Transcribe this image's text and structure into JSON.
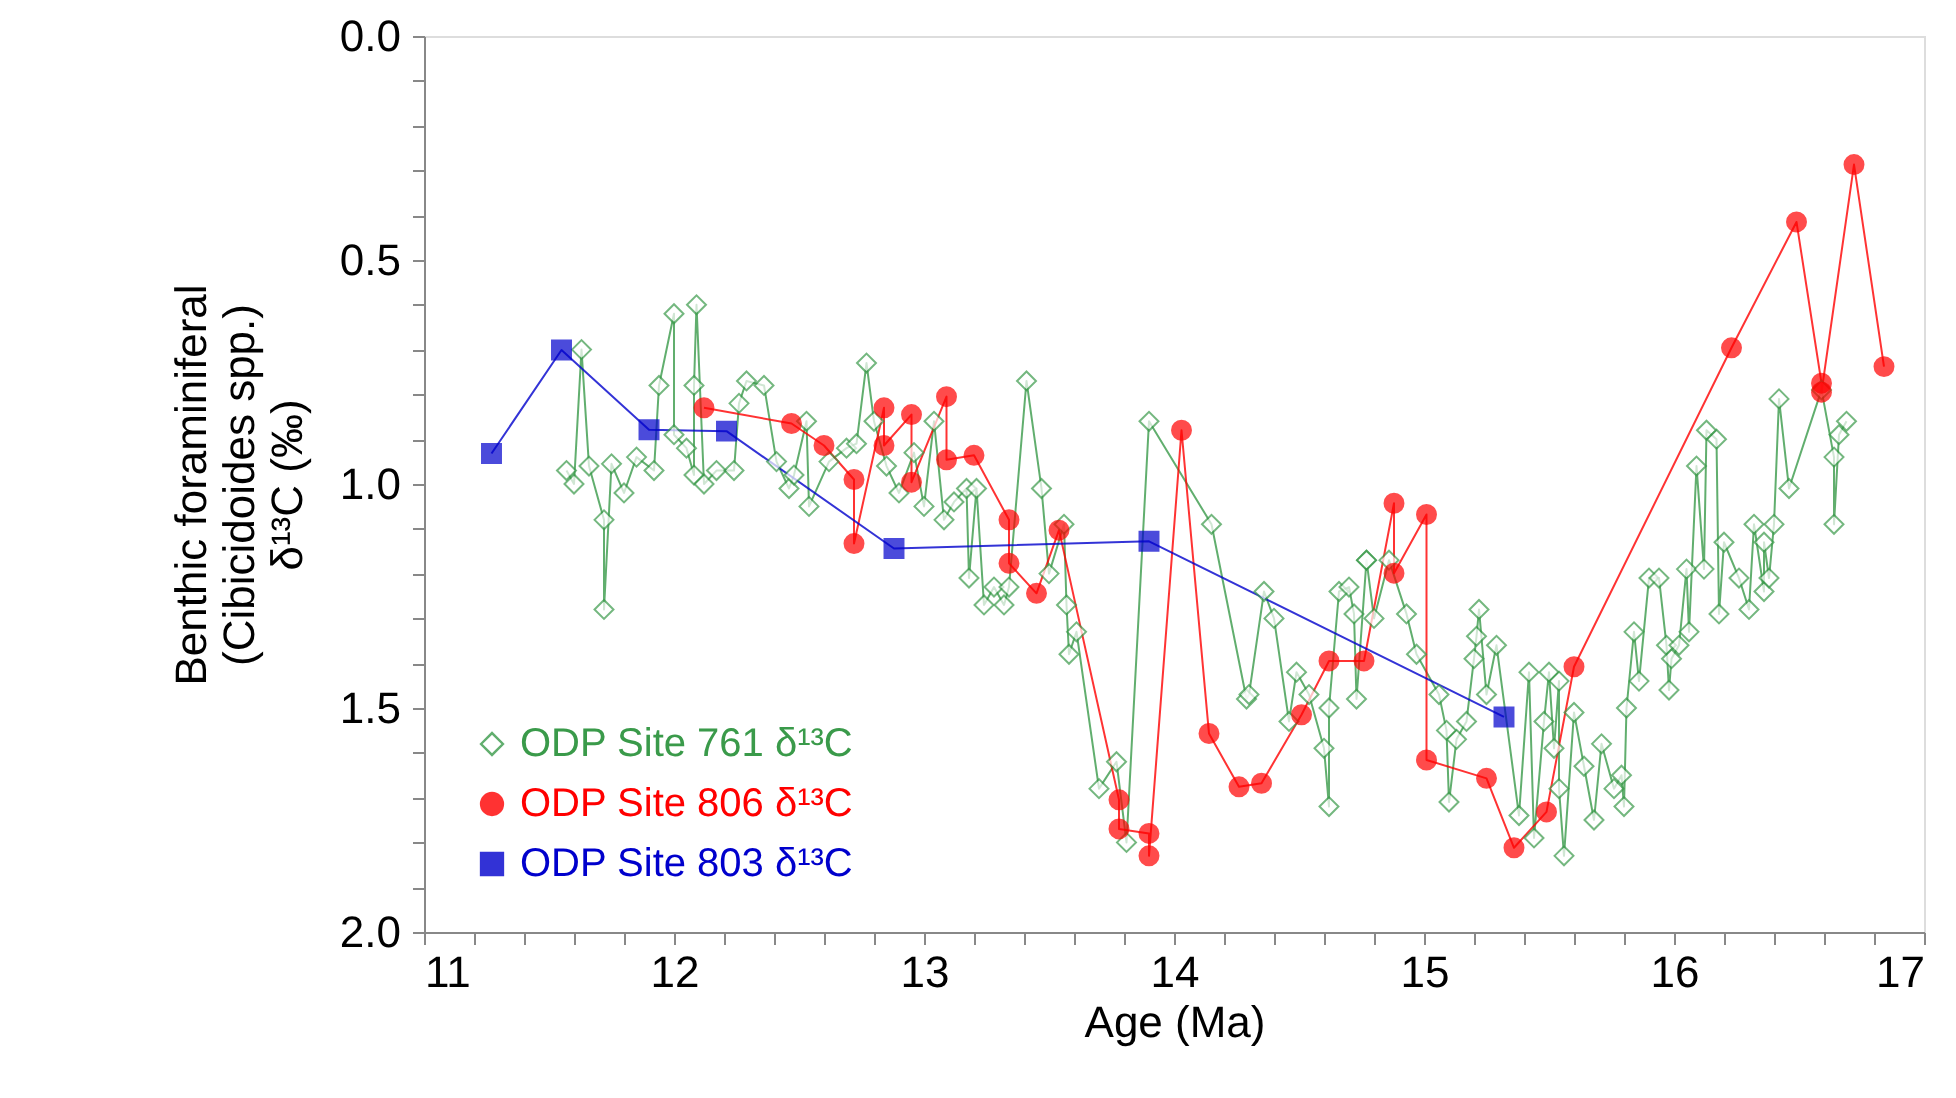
{
  "chart_data": {
    "type": "line",
    "xlabel": "Age (Ma)",
    "ylabel": "Benthic foraminiferal\n(Cibicidoides spp.)\nδ¹³C (‰)",
    "xlim": [
      11,
      17
    ],
    "ylim": [
      2.0,
      0.0
    ],
    "xticks": [
      11,
      {
        "value": 11.2,
        "label": null
      },
      {
        "value": 11.4,
        "label": null
      },
      {
        "value": 11.6,
        "label": null
      },
      {
        "value": 11.8,
        "label": null
      },
      12,
      {
        "value": 12.2,
        "label": null
      },
      {
        "value": 12.4,
        "label": null
      },
      {
        "value": 12.6,
        "label": null
      },
      {
        "value": 12.8,
        "label": null
      },
      13,
      {
        "value": 13.2,
        "label": null
      },
      {
        "value": 13.4,
        "label": null
      },
      {
        "value": 13.6,
        "label": null
      },
      {
        "value": 13.8,
        "label": null
      },
      14,
      {
        "value": 14.2,
        "label": null
      },
      {
        "value": 14.4,
        "label": null
      },
      {
        "value": 14.6,
        "label": null
      },
      {
        "value": 14.8,
        "label": null
      },
      15,
      {
        "value": 15.2,
        "label": null
      },
      {
        "value": 15.4,
        "label": null
      },
      {
        "value": 15.6,
        "label": null
      },
      {
        "value": 15.8,
        "label": null
      },
      16,
      {
        "value": 16.2,
        "label": null
      },
      {
        "value": 16.4,
        "label": null
      },
      {
        "value": 16.6,
        "label": null
      },
      {
        "value": 16.8,
        "label": null
      },
      17
    ],
    "yticks": [
      {
        "value": 0,
        "label": "0.0"
      },
      {
        "value": 0.1,
        "label": null
      },
      {
        "value": 0.2,
        "label": null
      },
      {
        "value": 0.3,
        "label": null
      },
      {
        "value": 0.4,
        "label": null
      },
      0.5,
      {
        "value": 0.6,
        "label": null
      },
      {
        "value": 0.7,
        "label": null
      },
      {
        "value": 0.8,
        "label": null
      },
      {
        "value": 0.9,
        "label": null
      },
      {
        "value": 1,
        "label": "1.0"
      },
      {
        "value": 1.1,
        "label": null
      },
      {
        "value": 1.2,
        "label": null
      },
      {
        "value": 1.3,
        "label": null
      },
      {
        "value": 1.4,
        "label": null
      },
      1.5,
      {
        "value": 1.6,
        "label": null
      },
      {
        "value": 1.7,
        "label": null
      },
      {
        "value": 1.8,
        "label": null
      },
      {
        "value": 1.9,
        "label": null
      },
      {
        "value": 2,
        "label": "2.0"
      }
    ],
    "grid": false,
    "legend": "bottom left",
    "line_style": "solid",
    "series": [
      {
        "name": "ODP Site 761 δ¹³C",
        "color": "#3a9a4a",
        "marker": "diamond",
        "x": [
          11.57,
          11.6,
          11.63,
          11.66,
          11.72,
          11.72,
          11.75,
          11.8,
          11.85,
          11.92,
          11.94,
          12.0,
          12.0,
          12.05,
          12.08,
          12.08,
          12.09,
          12.12,
          12.17,
          12.24,
          12.26,
          12.29,
          12.36,
          12.41,
          12.46,
          12.48,
          12.53,
          12.54,
          12.62,
          12.69,
          12.73,
          12.77,
          12.8,
          12.85,
          12.9,
          12.96,
          13.0,
          13.04,
          13.08,
          13.12,
          13.17,
          13.18,
          13.21,
          13.24,
          13.28,
          13.32,
          13.34,
          13.41,
          13.47,
          13.5,
          13.56,
          13.57,
          13.58,
          13.61,
          13.7,
          13.77,
          13.81,
          13.9,
          14.15,
          14.29,
          14.3,
          14.36,
          14.4,
          14.46,
          14.49,
          14.54,
          14.6,
          14.62,
          14.62,
          14.66,
          14.7,
          14.72,
          14.73,
          14.77,
          14.77,
          14.8,
          14.86,
          14.93,
          14.97,
          15.06,
          15.09,
          15.1,
          15.13,
          15.17,
          15.2,
          15.21,
          15.22,
          15.25,
          15.29,
          15.38,
          15.42,
          15.44,
          15.48,
          15.5,
          15.52,
          15.54,
          15.54,
          15.56,
          15.6,
          15.64,
          15.68,
          15.71,
          15.76,
          15.79,
          15.8,
          15.81,
          15.84,
          15.86,
          15.9,
          15.94,
          15.97,
          15.98,
          15.99,
          16.02,
          16.05,
          16.06,
          16.09,
          16.12,
          16.13,
          16.17,
          16.18,
          16.2,
          16.26,
          16.3,
          16.32,
          16.36,
          16.36,
          16.38,
          16.4,
          16.42,
          16.46,
          16.59,
          16.64,
          16.64,
          16.66,
          16.69
        ],
        "values": [
          0.97,
          1.0,
          0.7,
          0.96,
          1.08,
          1.28,
          0.955,
          1.02,
          0.94,
          0.97,
          0.78,
          0.62,
          0.89,
          0.92,
          0.98,
          0.78,
          0.6,
          1.0,
          0.97,
          0.97,
          0.82,
          0.77,
          0.78,
          0.95,
          1.01,
          0.98,
          0.86,
          1.05,
          0.95,
          0.92,
          0.91,
          0.73,
          0.86,
          0.96,
          1.02,
          0.93,
          1.05,
          0.86,
          1.08,
          1.04,
          1.01,
          1.21,
          1.01,
          1.27,
          1.23,
          1.27,
          1.23,
          0.77,
          1.01,
          1.2,
          1.09,
          1.27,
          1.38,
          1.33,
          1.68,
          1.62,
          1.8,
          0.86,
          1.09,
          1.48,
          1.47,
          1.24,
          1.3,
          1.53,
          1.42,
          1.47,
          1.59,
          1.72,
          1.5,
          1.24,
          1.23,
          1.29,
          1.48,
          1.17,
          1.17,
          1.3,
          1.17,
          1.29,
          1.38,
          1.47,
          1.55,
          1.71,
          1.57,
          1.53,
          1.39,
          1.34,
          1.28,
          1.47,
          1.36,
          1.74,
          1.42,
          1.79,
          1.53,
          1.42,
          1.59,
          1.44,
          1.68,
          1.83,
          1.51,
          1.63,
          1.75,
          1.58,
          1.68,
          1.65,
          1.72,
          1.5,
          1.33,
          1.44,
          1.21,
          1.21,
          1.36,
          1.46,
          1.39,
          1.36,
          1.19,
          1.33,
          0.96,
          1.19,
          0.88,
          0.9,
          1.29,
          1.13,
          1.21,
          1.28,
          1.09,
          1.24,
          1.13,
          1.21,
          1.09,
          0.81,
          1.01,
          0.79,
          0.94,
          1.09,
          0.89,
          0.86
        ]
      },
      {
        "name": "ODP Site 806 δ¹³C",
        "color": "#ff0000",
        "marker": "circle",
        "x": [
          12.12,
          12.47,
          12.6,
          12.72,
          12.72,
          12.84,
          12.84,
          12.95,
          12.95,
          13.09,
          13.09,
          13.2,
          13.34,
          13.34,
          13.45,
          13.54,
          13.78,
          13.78,
          13.9,
          13.9,
          14.03,
          14.14,
          14.26,
          14.35,
          14.51,
          14.62,
          14.76,
          14.88,
          14.88,
          15.01,
          15.01,
          15.25,
          15.36,
          15.49,
          15.6,
          16.23,
          16.49,
          16.59,
          16.59,
          16.72,
          16.84
        ],
        "values": [
          0.83,
          0.865,
          0.914,
          0.99,
          1.133,
          0.83,
          0.914,
          0.845,
          0.996,
          0.805,
          0.946,
          0.936,
          1.08,
          1.177,
          1.244,
          1.103,
          1.705,
          1.77,
          1.78,
          1.83,
          0.88,
          1.557,
          1.676,
          1.668,
          1.515,
          1.395,
          1.395,
          1.043,
          1.199,
          1.068,
          1.616,
          1.657,
          1.812,
          1.732,
          1.408,
          0.696,
          0.415,
          0.775,
          0.795,
          0.287,
          0.738
        ]
      },
      {
        "name": "ODP Site 803 δ¹³C",
        "color": "#0000cc",
        "marker": "square",
        "x": [
          11.27,
          11.55,
          11.9,
          12.21,
          12.88,
          13.9,
          15.32
        ],
        "values": [
          0.932,
          0.701,
          0.879,
          0.882,
          1.144,
          1.128,
          1.52
        ]
      }
    ]
  }
}
